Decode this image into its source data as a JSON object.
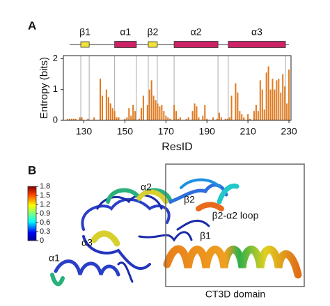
{
  "panel_labels": [
    "A",
    "B"
  ],
  "chart_data": {
    "type": "bar",
    "x_label": "ResID",
    "y_label": "Entropy (bits)",
    "color": "#e07a1f",
    "x": [
      122,
      123,
      124,
      125,
      126,
      127,
      128,
      129,
      130,
      131,
      132,
      133,
      134,
      135,
      136,
      137,
      138,
      139,
      140,
      141,
      142,
      143,
      144,
      145,
      146,
      147,
      148,
      149,
      150,
      151,
      152,
      153,
      154,
      155,
      156,
      157,
      158,
      159,
      160,
      161,
      162,
      163,
      164,
      165,
      166,
      167,
      168,
      169,
      170,
      171,
      172,
      173,
      174,
      175,
      176,
      177,
      178,
      179,
      180,
      181,
      182,
      183,
      184,
      185,
      186,
      187,
      188,
      189,
      190,
      191,
      192,
      193,
      194,
      195,
      196,
      197,
      198,
      199,
      200,
      201,
      202,
      203,
      204,
      205,
      206,
      207,
      208,
      209,
      210,
      211,
      212,
      213,
      214,
      215,
      216,
      217,
      218,
      219,
      220,
      221,
      222,
      223,
      224,
      225,
      226,
      227,
      228,
      229,
      230
    ],
    "values": [
      0.05,
      0.05,
      0.05,
      0.05,
      0.05,
      0,
      0.1,
      0.1,
      0,
      0,
      0.05,
      0,
      0,
      0.1,
      0,
      0,
      1.35,
      0.8,
      0,
      1.0,
      0.75,
      0.55,
      0.4,
      0.3,
      0.1,
      0.1,
      0,
      0,
      0.05,
      0.1,
      0.4,
      0.15,
      0.5,
      0.3,
      0,
      0.05,
      0.4,
      0.8,
      0,
      0.5,
      1.0,
      1.3,
      0.8,
      0.65,
      0.55,
      0.45,
      0.5,
      0.3,
      0.15,
      0.1,
      0.05,
      0,
      0.5,
      0.3,
      0.05,
      0.1,
      0,
      0,
      0.05,
      0.1,
      0,
      0.3,
      0.55,
      0.45,
      0.1,
      0,
      0.15,
      0.5,
      0.05,
      0,
      0,
      0.1,
      0,
      0.05,
      0.25,
      0.1,
      0,
      0.05,
      0.05,
      0.1,
      0.8,
      0,
      1.2,
      0.9,
      0.3,
      0.2,
      0.1,
      0,
      0.2,
      0.05,
      0,
      0.3,
      0.5,
      0.3,
      1.3,
      1.0,
      0.35,
      1.55,
      1.75,
      1.0,
      1.35,
      1.0,
      1.3,
      1.35,
      0.9,
      1.5,
      1.1,
      0.55,
      1.65
    ],
    "xlim": [
      120,
      231
    ],
    "xticks": [
      130,
      150,
      170,
      190,
      210,
      230
    ],
    "ylim": [
      0,
      2.1
    ],
    "yticks": [
      0,
      1,
      2
    ],
    "secondary_structure": [
      {
        "label": "β1",
        "kind": "strand",
        "color": "#f2e33a",
        "start": 128.5,
        "end": 132.6
      },
      {
        "label": "α1",
        "kind": "helix",
        "color": "#cc2266",
        "start": 145,
        "end": 155.6
      },
      {
        "label": "β2",
        "kind": "strand",
        "color": "#f2e33a",
        "start": 161.4,
        "end": 165.8
      },
      {
        "label": "α2",
        "kind": "helix",
        "color": "#cc2266",
        "start": 174,
        "end": 195.4
      },
      {
        "label": "α3",
        "kind": "helix",
        "color": "#cc2266",
        "start": 200.4,
        "end": 228.3
      }
    ]
  },
  "structure": {
    "colorbar_lim": [
      0,
      1.8
    ],
    "colorbar_ticks": [
      0,
      0.3,
      0.6,
      0.9,
      1.2,
      1.5,
      1.8
    ],
    "labels": [
      "α2",
      "β2",
      "β2-α2 loop",
      "β1",
      "α3",
      "α1"
    ],
    "box_label": "CT3D domain"
  }
}
